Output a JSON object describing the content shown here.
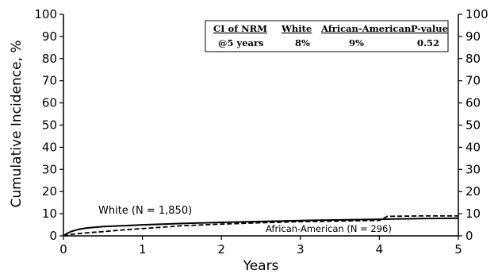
{
  "chart_data": {
    "type": "line",
    "xlabel": "Years",
    "ylabel": "Cumulative Incidence, %",
    "xlim": [
      0,
      5
    ],
    "ylim": [
      0,
      100
    ],
    "x_ticks": [
      "0",
      "1",
      "2",
      "3",
      "4",
      "5"
    ],
    "y_ticks": [
      "0",
      "10",
      "20",
      "30",
      "40",
      "50",
      "60",
      "70",
      "80",
      "90",
      "100"
    ],
    "grid": false,
    "series": [
      {
        "name": "White (N = 1,850)",
        "style": "solid",
        "x": [
          0,
          0.05,
          0.1,
          0.2,
          0.3,
          0.5,
          0.75,
          1.0,
          1.5,
          2.0,
          2.5,
          3.0,
          3.5,
          4.0,
          4.5,
          5.0
        ],
        "y": [
          0,
          1.2,
          2.0,
          3.0,
          3.6,
          4.2,
          4.6,
          5.0,
          5.6,
          6.1,
          6.5,
          6.9,
          7.2,
          7.5,
          7.8,
          8.0
        ]
      },
      {
        "name": "African-American (N = 296)",
        "style": "dashed",
        "x": [
          0,
          0.1,
          0.3,
          0.5,
          0.75,
          1.0,
          1.25,
          1.5,
          2.0,
          2.5,
          3.0,
          3.5,
          4.0,
          4.1,
          4.5,
          5.0
        ],
        "y": [
          0,
          0.7,
          1.4,
          1.9,
          2.7,
          3.3,
          3.9,
          4.6,
          5.3,
          5.9,
          6.4,
          6.7,
          7.0,
          8.8,
          9.0,
          9.0
        ]
      }
    ],
    "table": {
      "headers": [
        "CI of NRM",
        "White",
        "African-American",
        "P-value"
      ],
      "row": [
        "@5 years",
        "8%",
        "9%",
        "0.52"
      ]
    }
  }
}
